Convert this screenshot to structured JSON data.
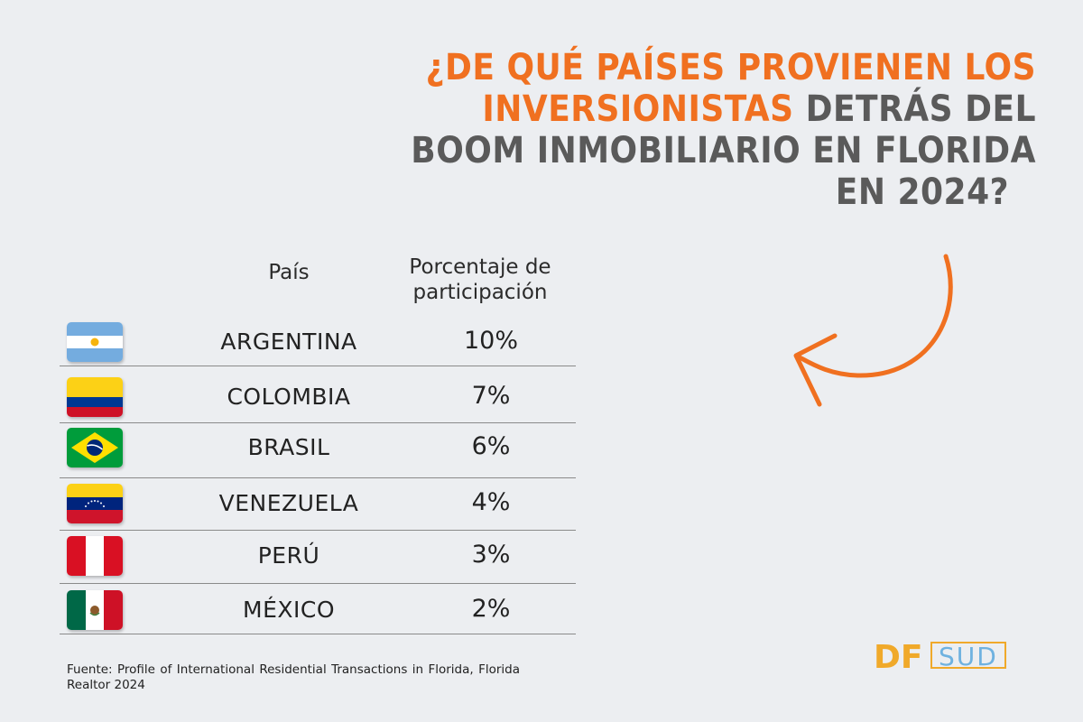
{
  "title": {
    "line1_orange": "¿DE QUÉ PAÍSES PROVIENEN LOS",
    "line2_orange": "INVERSIONISTAS",
    "line2_gray": "DETRÁS DEL",
    "line3_gray": "BOOM INMOBILIARIO EN FLORIDA",
    "line4_gray": "EN 2024?"
  },
  "table": {
    "header_country": "País",
    "header_pct_line1": "Porcentaje de",
    "header_pct_line2": "participación"
  },
  "chart_data": {
    "type": "table",
    "columns": [
      "País",
      "Porcentaje de participación"
    ],
    "rows": [
      {
        "country": "ARGENTINA",
        "value": "10%",
        "percent": 10,
        "flag": "argentina-flag"
      },
      {
        "country": "COLOMBIA",
        "value": "7%",
        "percent": 7,
        "flag": "colombia-flag"
      },
      {
        "country": "BRASIL",
        "value": "6%",
        "percent": 6,
        "flag": "brazil-flag"
      },
      {
        "country": "VENEZUELA",
        "value": "4%",
        "percent": 4,
        "flag": "venezuela-flag"
      },
      {
        "country": "PERÚ",
        "value": "3%",
        "percent": 3,
        "flag": "peru-flag"
      },
      {
        "country": "MÉXICO",
        "value": "2%",
        "percent": 2,
        "flag": "mexico-flag"
      }
    ]
  },
  "source": "Fuente: Profile of International Residential Transactions in Florida, Florida Realtor 2024",
  "logo": {
    "left": "DF",
    "right": "SUD"
  },
  "colors": {
    "accent": "#f07020",
    "title_gray": "#5a5a5a",
    "background": "#eceef1",
    "logo_gold": "#f0a92a",
    "logo_blue": "#6fb2e0"
  },
  "icons": [
    "curved-arrow-icon"
  ]
}
